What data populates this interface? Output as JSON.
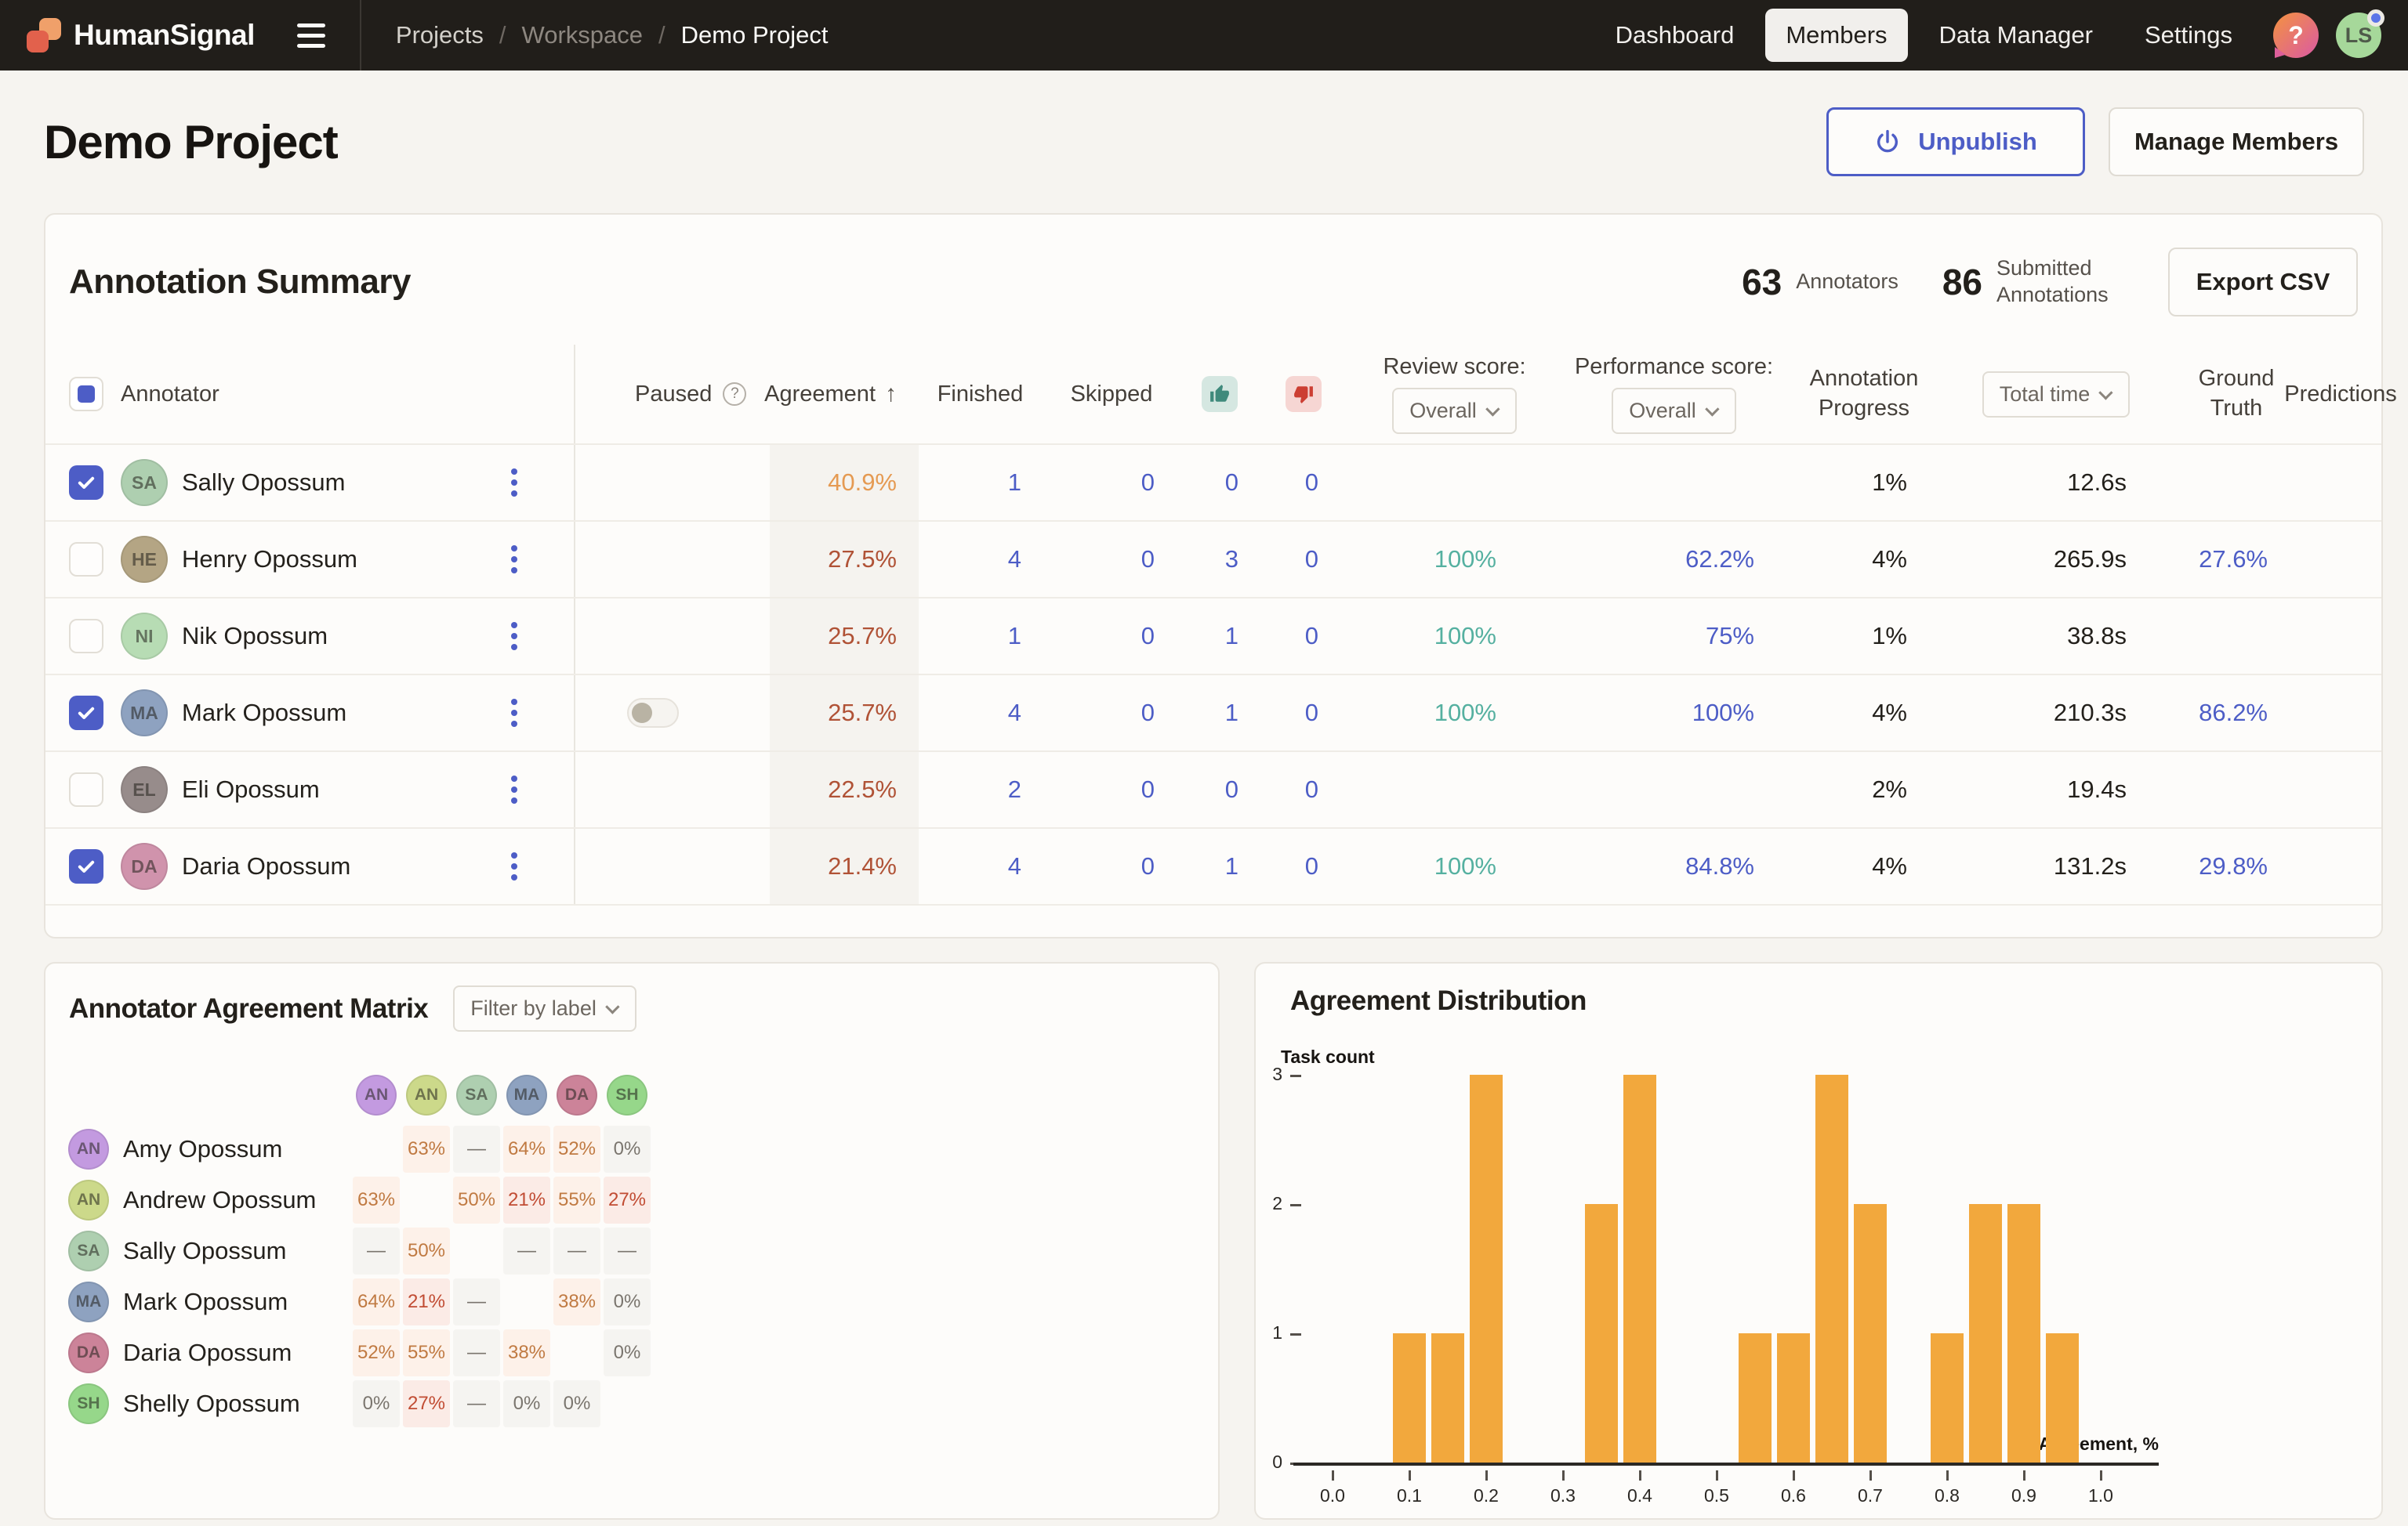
{
  "topnav": {
    "brand": "HumanSignal",
    "breadcrumbs": [
      "Projects",
      "Workspace",
      "Demo Project"
    ],
    "nav_items": [
      {
        "label": "Dashboard",
        "active": false
      },
      {
        "label": "Members",
        "active": true
      },
      {
        "label": "Data Manager",
        "active": false
      },
      {
        "label": "Settings",
        "active": false
      }
    ],
    "help_glyph": "?",
    "avatar_initials": "LS"
  },
  "page_header": {
    "title": "Demo Project",
    "unpublish_label": "Unpublish",
    "manage_members_label": "Manage Members"
  },
  "summary": {
    "title": "Annotation Summary",
    "stats": [
      {
        "value": "63",
        "label": "Annotators"
      },
      {
        "value": "86",
        "label": "Submitted Annotations"
      }
    ],
    "export_label": "Export CSV",
    "columns": {
      "annotator": "Annotator",
      "paused": "Paused",
      "agreement": "Agreement",
      "finished": "Finished",
      "skipped": "Skipped",
      "review_score": "Review score:",
      "performance_score": "Performance score:",
      "annotation_progress": "Annotation Progress",
      "ground_truth": "Ground Truth",
      "predictions": "Predictions"
    },
    "review_score_selected": "Overall",
    "performance_score_selected": "Overall",
    "total_time_selected": "Total time",
    "rows": [
      {
        "name": "Sally Opossum",
        "initials": "SA",
        "avatar_color": "#aecfb0",
        "checked": true,
        "paused_toggle": false,
        "agreement": "40.9%",
        "agreement_tone": "warn",
        "finished": "1",
        "skipped": "0",
        "thumbs_up": "0",
        "thumbs_down": "0",
        "review_score": "",
        "performance_score": "",
        "progress": "1%",
        "total_time": "12.6s",
        "ground_truth": "",
        "predictions": ""
      },
      {
        "name": "Henry Opossum",
        "initials": "HE",
        "avatar_color": "#b4a584",
        "checked": false,
        "paused_toggle": false,
        "agreement": "27.5%",
        "agreement_tone": "bad",
        "finished": "4",
        "skipped": "0",
        "thumbs_up": "3",
        "thumbs_down": "0",
        "review_score": "100%",
        "performance_score": "62.2%",
        "progress": "4%",
        "total_time": "265.9s",
        "ground_truth": "27.6%",
        "predictions": ""
      },
      {
        "name": "Nik Opossum",
        "initials": "NI",
        "avatar_color": "#b7dcb4",
        "checked": false,
        "paused_toggle": false,
        "agreement": "25.7%",
        "agreement_tone": "bad",
        "finished": "1",
        "skipped": "0",
        "thumbs_up": "1",
        "thumbs_down": "0",
        "review_score": "100%",
        "performance_score": "75%",
        "progress": "1%",
        "total_time": "38.8s",
        "ground_truth": "",
        "predictions": ""
      },
      {
        "name": "Mark Opossum",
        "initials": "MA",
        "avatar_color": "#8ea2c0",
        "checked": true,
        "paused_toggle": true,
        "agreement": "25.7%",
        "agreement_tone": "bad",
        "finished": "4",
        "skipped": "0",
        "thumbs_up": "1",
        "thumbs_down": "0",
        "review_score": "100%",
        "performance_score": "100%",
        "progress": "4%",
        "total_time": "210.3s",
        "ground_truth": "86.2%",
        "predictions": ""
      },
      {
        "name": "Eli Opossum",
        "initials": "EL",
        "avatar_color": "#978c8b",
        "checked": false,
        "paused_toggle": false,
        "agreement": "22.5%",
        "agreement_tone": "bad",
        "finished": "2",
        "skipped": "0",
        "thumbs_up": "0",
        "thumbs_down": "0",
        "review_score": "",
        "performance_score": "",
        "progress": "2%",
        "total_time": "19.4s",
        "ground_truth": "",
        "predictions": ""
      },
      {
        "name": "Daria Opossum",
        "initials": "DA",
        "avatar_color": "#d093ac",
        "checked": true,
        "paused_toggle": false,
        "agreement": "21.4%",
        "agreement_tone": "bad",
        "finished": "4",
        "skipped": "0",
        "thumbs_up": "1",
        "thumbs_down": "0",
        "review_score": "100%",
        "performance_score": "84.8%",
        "progress": "4%",
        "total_time": "131.2s",
        "ground_truth": "29.8%",
        "predictions": ""
      }
    ]
  },
  "matrix": {
    "title": "Annotator Agreement Matrix",
    "filter_label": "Filter by label",
    "columns": [
      {
        "initials": "AN",
        "color": "#c39ae0"
      },
      {
        "initials": "AN",
        "color": "#ccd98a"
      },
      {
        "initials": "SA",
        "color": "#aecfb0"
      },
      {
        "initials": "MA",
        "color": "#8ea2c0"
      },
      {
        "initials": "DA",
        "color": "#cc8399"
      },
      {
        "initials": "SH",
        "color": "#96d78a"
      }
    ],
    "rows": [
      {
        "name": "Amy Opossum",
        "initials": "AN",
        "color": "#c39ae0",
        "values": [
          null,
          "63%",
          "—",
          "64%",
          "52%",
          "0%"
        ]
      },
      {
        "name": "Andrew Opossum",
        "initials": "AN",
        "color": "#ccd98a",
        "values": [
          "63%",
          null,
          "50%",
          "21%",
          "55%",
          "27%"
        ]
      },
      {
        "name": "Sally Opossum",
        "initials": "SA",
        "color": "#aecfb0",
        "values": [
          "—",
          "50%",
          null,
          "—",
          "—",
          "—"
        ]
      },
      {
        "name": "Mark Opossum",
        "initials": "MA",
        "color": "#8ea2c0",
        "values": [
          "64%",
          "21%",
          "—",
          null,
          "38%",
          "0%"
        ]
      },
      {
        "name": "Daria Opossum",
        "initials": "DA",
        "color": "#cc8399",
        "values": [
          "52%",
          "55%",
          "—",
          "38%",
          null,
          "0%"
        ]
      },
      {
        "name": "Shelly Opossum",
        "initials": "SH",
        "color": "#96d78a",
        "values": [
          "0%",
          "27%",
          "—",
          "0%",
          "0%",
          null
        ]
      }
    ]
  },
  "chart_data": {
    "type": "bar",
    "title": "Agreement Distribution",
    "xlabel": "Agreement, %",
    "ylabel": "Task count",
    "xlim": [
      0.0,
      1.0
    ],
    "ylim": [
      0,
      3
    ],
    "x_ticks": [
      "0.0",
      "0.1",
      "0.2",
      "0.3",
      "0.4",
      "0.5",
      "0.6",
      "0.7",
      "0.8",
      "0.9",
      "1.0"
    ],
    "y_ticks": [
      0,
      1,
      2,
      3
    ],
    "grid": false,
    "legend": "none",
    "bar_color": "#f2a83d",
    "bin_width": 0.05,
    "bars": [
      {
        "x": 0.1,
        "count": 1
      },
      {
        "x": 0.15,
        "count": 1
      },
      {
        "x": 0.2,
        "count": 3
      },
      {
        "x": 0.35,
        "count": 2
      },
      {
        "x": 0.4,
        "count": 3
      },
      {
        "x": 0.55,
        "count": 1
      },
      {
        "x": 0.6,
        "count": 1
      },
      {
        "x": 0.65,
        "count": 3
      },
      {
        "x": 0.7,
        "count": 2
      },
      {
        "x": 0.8,
        "count": 1
      },
      {
        "x": 0.85,
        "count": 2
      },
      {
        "x": 0.9,
        "count": 2
      },
      {
        "x": 0.95,
        "count": 1
      }
    ]
  }
}
